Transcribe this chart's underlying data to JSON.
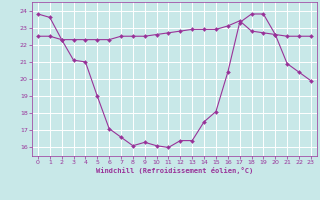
{
  "line1_x": [
    0,
    1,
    2,
    3,
    4,
    5,
    6,
    7,
    8,
    9,
    10,
    11,
    12,
    13,
    14,
    15,
    16,
    17,
    18,
    19,
    20,
    21,
    22,
    23
  ],
  "line1_y": [
    23.8,
    23.6,
    22.3,
    21.1,
    21.0,
    19.0,
    17.1,
    16.6,
    16.1,
    16.3,
    16.1,
    16.0,
    16.4,
    16.4,
    17.5,
    18.1,
    20.4,
    23.3,
    23.8,
    23.8,
    22.6,
    20.9,
    20.4,
    19.9
  ],
  "line2_x": [
    0,
    1,
    2,
    3,
    4,
    5,
    6,
    7,
    8,
    9,
    10,
    11,
    12,
    13,
    14,
    15,
    16,
    17,
    18,
    19,
    20,
    21,
    22,
    23
  ],
  "line2_y": [
    22.5,
    22.5,
    22.3,
    22.3,
    22.3,
    22.3,
    22.3,
    22.5,
    22.5,
    22.5,
    22.6,
    22.7,
    22.8,
    22.9,
    22.9,
    22.9,
    23.1,
    23.4,
    22.8,
    22.7,
    22.6,
    22.5,
    22.5,
    22.5
  ],
  "line_color": "#993399",
  "bg_color": "#c8e8e8",
  "grid_color": "#b0d8d8",
  "xlabel": "Windchill (Refroidissement éolien,°C)",
  "ylim": [
    15.5,
    24.5
  ],
  "xlim": [
    -0.5,
    23.5
  ],
  "yticks": [
    16,
    17,
    18,
    19,
    20,
    21,
    22,
    23,
    24
  ],
  "xticks": [
    0,
    1,
    2,
    3,
    4,
    5,
    6,
    7,
    8,
    9,
    10,
    11,
    12,
    13,
    14,
    15,
    16,
    17,
    18,
    19,
    20,
    21,
    22,
    23
  ]
}
